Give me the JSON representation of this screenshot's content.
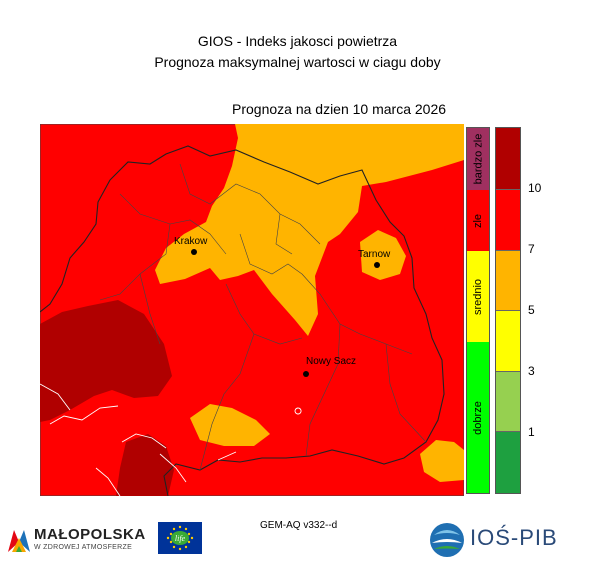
{
  "header": {
    "title": "GIOS - Indeks jakosci powietrza",
    "subtitle": "Prognoza maksymalnej wartosci w ciagu doby",
    "forecast_date": "Prognoza na dzien  10 marca 2026"
  },
  "map": {
    "cities": [
      {
        "name": "Krakow"
      },
      {
        "name": "Tarnow"
      },
      {
        "name": "Nowy Sacz"
      }
    ]
  },
  "legend": {
    "categories": [
      {
        "label": "bardzo zle",
        "color": "#a03060"
      },
      {
        "label": "zle",
        "color": "#ff0000"
      },
      {
        "label": "srednio",
        "color": "#ffff00"
      },
      {
        "label": "dobrze",
        "color": "#00ff00"
      }
    ],
    "scale_colors": [
      "#b00000",
      "#ff0000",
      "#ffb400",
      "#ffff00",
      "#96d050",
      "#1ea040"
    ],
    "scale_ticks": [
      "10",
      "7",
      "5",
      "3",
      "1"
    ]
  },
  "footer": {
    "model": "GEM-AQ v332--d",
    "malopolska_name": "MAŁOPOLSKA",
    "malopolska_sub": "W ZDROWEJ ATMOSFERZE",
    "eu_logo_text": "life",
    "ios_name": "IOŚ-PIB"
  }
}
